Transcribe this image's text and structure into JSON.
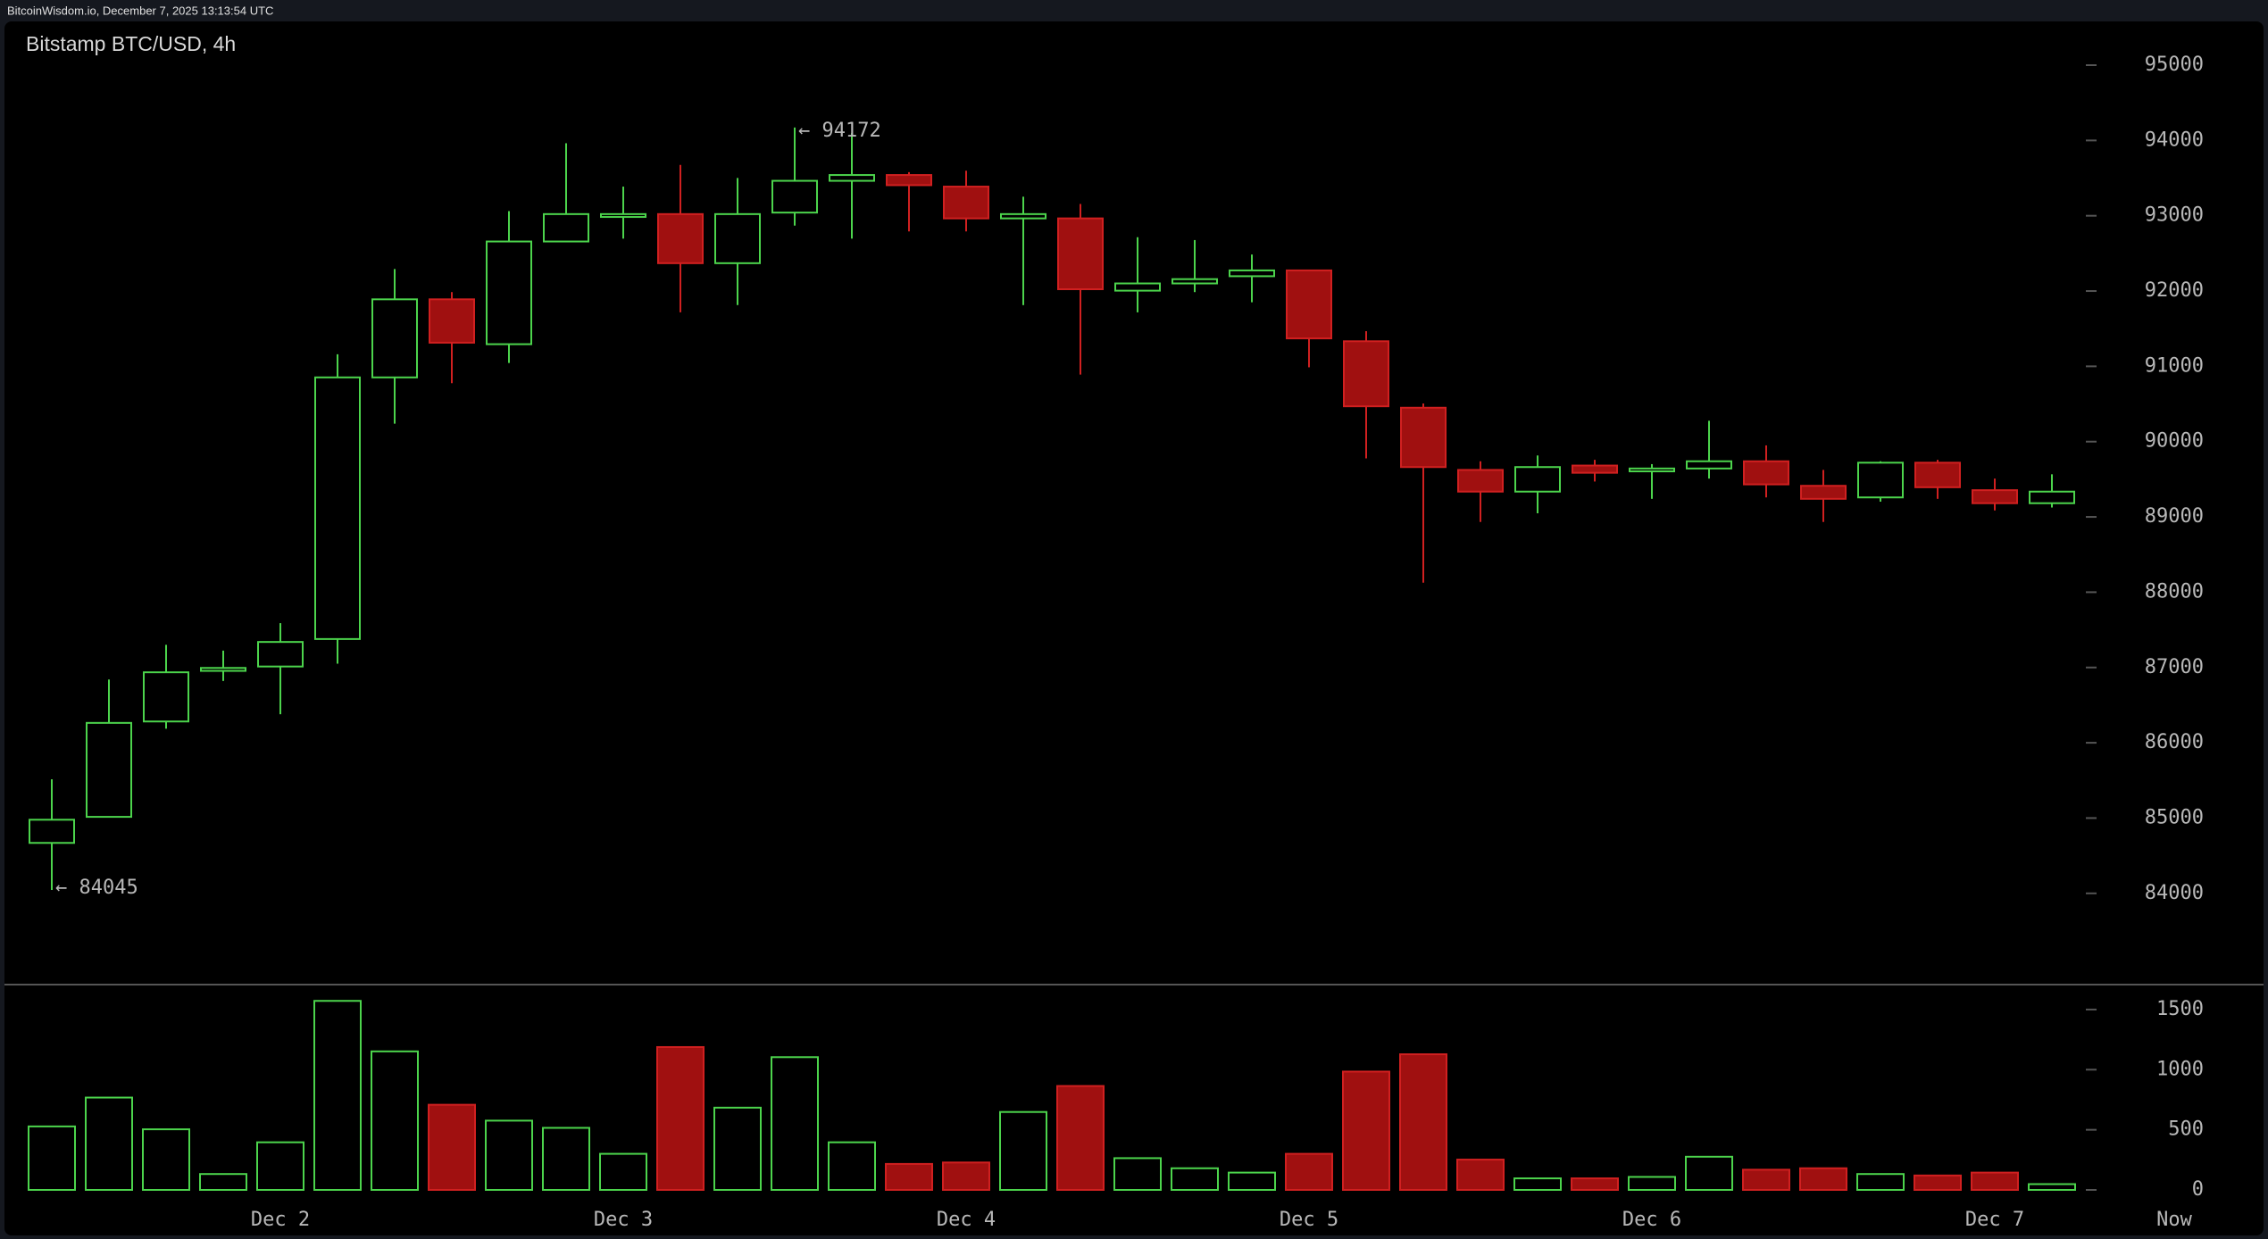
{
  "caption": "BitcoinWisdom.io, December 7, 2025 13:13:54 UTC",
  "chart_data": [
    {
      "type": "candlestick",
      "title": "Bitstamp BTC/USD, 4h",
      "up_color": "#4cd44c",
      "down_color": "#a01010",
      "open": [
        84670,
        85016,
        86283,
        86955,
        87013,
        87378,
        90853,
        91890,
        91294,
        92658,
        92984,
        93022,
        92370,
        93042,
        93464,
        93541,
        93387,
        92965,
        92965,
        92005,
        92101,
        92197,
        92274,
        91333,
        90450,
        89624,
        89336,
        89682,
        89605,
        89643,
        89739,
        89413,
        89259,
        89720,
        89355,
        89182
      ],
      "high": [
        85515,
        86840,
        87301,
        87224,
        87589,
        91160,
        92293,
        91986,
        93061,
        93963,
        93387,
        93675,
        93502,
        94172,
        94098,
        93579,
        93598,
        93253,
        93157,
        92715,
        92677,
        92485,
        92274,
        91467,
        90507,
        89739,
        89816,
        89758,
        89701,
        90277,
        89950,
        89624,
        89739,
        89758,
        89509,
        89566
      ],
      "low": [
        84045,
        85016,
        86187,
        86821,
        86379,
        87051,
        90238,
        90776,
        91045,
        92658,
        92696,
        91717,
        91813,
        92869,
        92696,
        92792,
        92792,
        91813,
        90891,
        91717,
        91986,
        91851,
        90987,
        89778,
        88126,
        88933,
        89048,
        89470,
        89240,
        89509,
        89259,
        88933,
        89202,
        89240,
        89086,
        89125
      ],
      "close": [
        84978,
        86264,
        86936,
        86994,
        87339,
        90853,
        91890,
        91314,
        92658,
        93022,
        93022,
        92370,
        93022,
        93464,
        93541,
        93406,
        92965,
        93022,
        92024,
        92101,
        92158,
        92274,
        91371,
        90469,
        89662,
        89336,
        89662,
        89586,
        89643,
        89739,
        89432,
        89240,
        89720,
        89394,
        89182,
        89336
      ],
      "ylim": [
        82800,
        95600
      ],
      "yticks": [
        84000,
        85000,
        86000,
        87000,
        88000,
        89000,
        90000,
        91000,
        92000,
        93000,
        94000,
        95000
      ],
      "annotations": [
        {
          "text": "← 94172",
          "value": 94172
        },
        {
          "text": "← 84045",
          "value": 84045
        }
      ]
    },
    {
      "type": "bar",
      "categories": [
        null,
        null,
        null,
        null,
        "Dec 2",
        null,
        null,
        null,
        null,
        null,
        "Dec 3",
        null,
        null,
        null,
        null,
        null,
        "Dec 4",
        null,
        null,
        null,
        null,
        null,
        "Dec 5",
        null,
        null,
        null,
        null,
        null,
        "Dec 6",
        null,
        null,
        null,
        null,
        null,
        "Dec 7",
        null
      ],
      "values": [
        528,
        768,
        504,
        132,
        396,
        1572,
        1152,
        708,
        576,
        516,
        300,
        1188,
        684,
        1104,
        396,
        216,
        228,
        648,
        864,
        264,
        180,
        144,
        300,
        984,
        1128,
        252,
        96,
        96,
        108,
        276,
        168,
        180,
        132,
        120,
        144,
        48
      ],
      "ylim": [
        0,
        1700
      ],
      "yticks": [
        0,
        500,
        1000,
        1500
      ],
      "end_label": "Now"
    }
  ]
}
